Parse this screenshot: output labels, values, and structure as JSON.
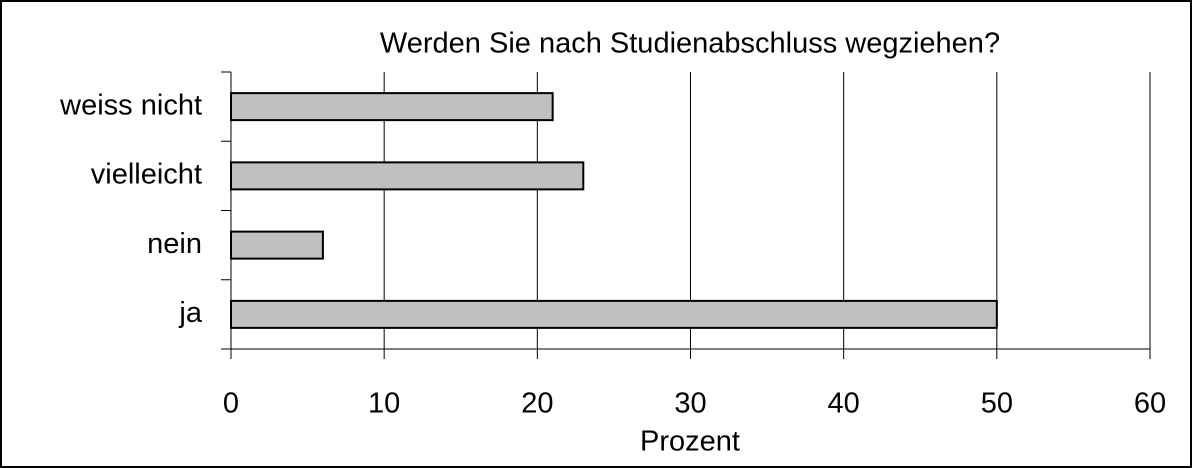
{
  "chart_data": {
    "type": "bar",
    "orientation": "horizontal",
    "title": "Werden Sie nach Studienabschluss wegziehen?",
    "x_label": "Prozent",
    "categories": [
      "weiss nicht",
      "vielleicht",
      "nein",
      "ja"
    ],
    "values": [
      21,
      23,
      6,
      50
    ],
    "color": "#c0c0c0",
    "xlim": [
      0,
      60
    ],
    "xticks": [
      0,
      10,
      20,
      30,
      40,
      50,
      60
    ],
    "grid": true
  }
}
